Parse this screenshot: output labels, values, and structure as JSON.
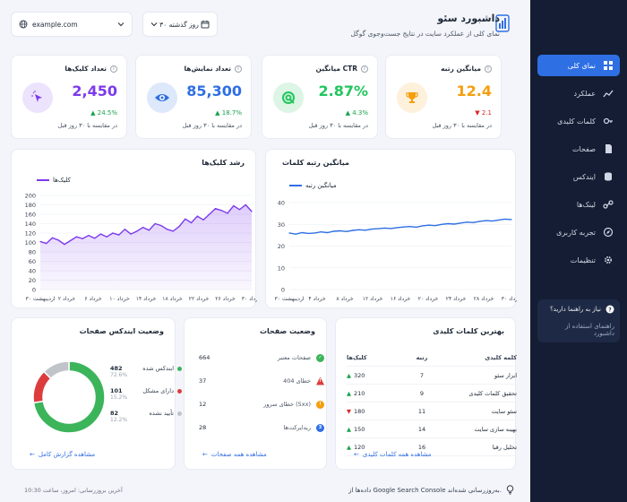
{
  "header": {
    "title": "داشبورد سئو",
    "subtitle": "نمای کلی از عملکرد سایت در نتایج جست‌وجوی گوگل",
    "date_range": "۳۰ روز گذشته",
    "site": "example.com"
  },
  "sidebar": {
    "items": [
      {
        "label": "نمای کلی",
        "icon": "grid-icon"
      },
      {
        "label": "عملکرد",
        "icon": "chart-line-icon"
      },
      {
        "label": "کلمات کلیدی",
        "icon": "key-icon"
      },
      {
        "label": "صفحات",
        "icon": "file-icon"
      },
      {
        "label": "ایندکس",
        "icon": "database-icon"
      },
      {
        "label": "لینک‌ها",
        "icon": "link-icon"
      },
      {
        "label": "تجربه کاربری",
        "icon": "compass-icon"
      },
      {
        "label": "تنظیمات",
        "icon": "gear-icon"
      }
    ],
    "help": {
      "title": "نیاز به راهنما دارید؟",
      "link": "راهنمای استفاده از داشبورد"
    }
  },
  "kpis": [
    {
      "title": "میانگین رتبه",
      "value": "12.4",
      "change": "2.1",
      "direction": "down",
      "compare": "در مقایسه با ۳۰ روز قبل",
      "color": "#f59e0b",
      "icon": "trophy-icon"
    },
    {
      "title": "میانگین CTR",
      "value": "2.87%",
      "change": "4.3%",
      "direction": "up",
      "compare": "در مقایسه با ۳۰ روز قبل",
      "color": "#22c55e",
      "icon": "target-icon"
    },
    {
      "title": "تعداد نمایش‌ها",
      "value": "85,300",
      "change": "18.7%",
      "direction": "up",
      "compare": "در مقایسه با ۳۰ روز قبل",
      "color": "#2f6fe4",
      "icon": "eye-icon"
    },
    {
      "title": "تعداد کلیک‌ها",
      "value": "2,450",
      "change": "24.5%",
      "direction": "up",
      "compare": "در مقایسه با ۳۰ روز قبل",
      "color": "#7c3aed",
      "icon": "cursor-icon"
    }
  ],
  "chart_data": [
    {
      "type": "area",
      "title": "رشد کلیک‌ها",
      "legend": "کلیک‌ها",
      "color": "#7c3aed",
      "ylim": [
        0,
        200
      ],
      "yticks": [
        0,
        20,
        40,
        60,
        80,
        100,
        120,
        140,
        160,
        180,
        200
      ],
      "xtick_labels": [
        "۳۰ اردیبهشت",
        "۲ خرداد",
        "۶ خرداد",
        "۱۰ خرداد",
        "۱۴ خرداد",
        "۱۸ خرداد",
        "۲۲ خرداد",
        "۲۶ خرداد",
        "۳۰ خرداد"
      ],
      "values": [
        102,
        98,
        110,
        105,
        96,
        104,
        112,
        108,
        115,
        109,
        118,
        112,
        120,
        116,
        128,
        118,
        124,
        132,
        126,
        140,
        136,
        128,
        124,
        134,
        150,
        142,
        156,
        148,
        160,
        172,
        168,
        162,
        178,
        170,
        180,
        166
      ]
    },
    {
      "type": "line",
      "title": "میانگین رتبه کلمات",
      "legend": "میانگین رتبه",
      "color": "#2f6fe4",
      "ylim": [
        0,
        40
      ],
      "yticks": [
        0,
        10,
        20,
        30,
        40
      ],
      "xtick_labels": [
        "۳۰ اردیبهشت",
        "۴ خرداد",
        "۸ خرداد",
        "۱۲ خرداد",
        "۱۶ خرداد",
        "۲۰ خرداد",
        "۲۴ خرداد",
        "۲۸ خرداد",
        "۳۰ خرداد"
      ],
      "values": [
        26,
        25.5,
        26.2,
        25.8,
        26,
        26.5,
        26.2,
        26.8,
        27,
        26.7,
        27.2,
        27.5,
        27.3,
        27.8,
        28,
        28.3,
        28.1,
        28.5,
        28.8,
        29,
        28.7,
        29.3,
        29.6,
        29.4,
        30,
        30.3,
        30.1,
        30.6,
        31,
        30.8,
        31.4,
        31.7,
        31.5,
        32,
        32.4,
        32.2
      ]
    },
    {
      "type": "pie",
      "title": "وضعیت ایندکس صفحات",
      "categories": [
        "ایندکس شده",
        "دارای مشکل",
        "تأیید نشده"
      ],
      "values": [
        482,
        101,
        82
      ],
      "percents": [
        "72.6%",
        "15.2%",
        "12.2%"
      ],
      "colors": [
        "#3cb45a",
        "#dc3c3c",
        "#c0c3c8"
      ]
    }
  ],
  "keywords": {
    "title": "بهترین کلمات کلیدی",
    "headers": {
      "name": "کلمه کلیدی",
      "rank": "رتبه",
      "clicks": "کلیک‌ها"
    },
    "rows": [
      {
        "name": "ابزار سئو",
        "rank": "7",
        "clicks": "320",
        "dir": "up"
      },
      {
        "name": "تحقیق کلمات کلیدی",
        "rank": "9",
        "clicks": "210",
        "dir": "up"
      },
      {
        "name": "سئو سایت",
        "rank": "11",
        "clicks": "180",
        "dir": "down"
      },
      {
        "name": "بهینه سازی سایت",
        "rank": "14",
        "clicks": "150",
        "dir": "up"
      },
      {
        "name": "تحلیل رقبا",
        "rank": "16",
        "clicks": "120",
        "dir": "up"
      }
    ],
    "footer": "مشاهده همه کلمات کلیدی"
  },
  "page_status": {
    "title": "وضعیت صفحات",
    "rows": [
      {
        "label": "صفحات معتبر",
        "value": "664",
        "color": "#3cb45a",
        "glyph": "✓"
      },
      {
        "label": "خطای 404",
        "value": "37",
        "color": "#dc3c3c",
        "glyph": "!"
      },
      {
        "label": "خطای سرور (5xx)",
        "value": "12",
        "color": "#f59e0b",
        "glyph": "!"
      },
      {
        "label": "ریدایرکت‌ها",
        "value": "28",
        "color": "#2f6fe4",
        "glyph": "3"
      }
    ],
    "footer": "مشاهده همه صفحات"
  },
  "index_status": {
    "footer": "مشاهده گزارش کامل"
  },
  "footer": {
    "updated": "آخرین بروزرسانی: امروز، ساعت 10:30",
    "note": "داده‌ها از Google Search Console به‌روزرسانی شده‌اند."
  }
}
